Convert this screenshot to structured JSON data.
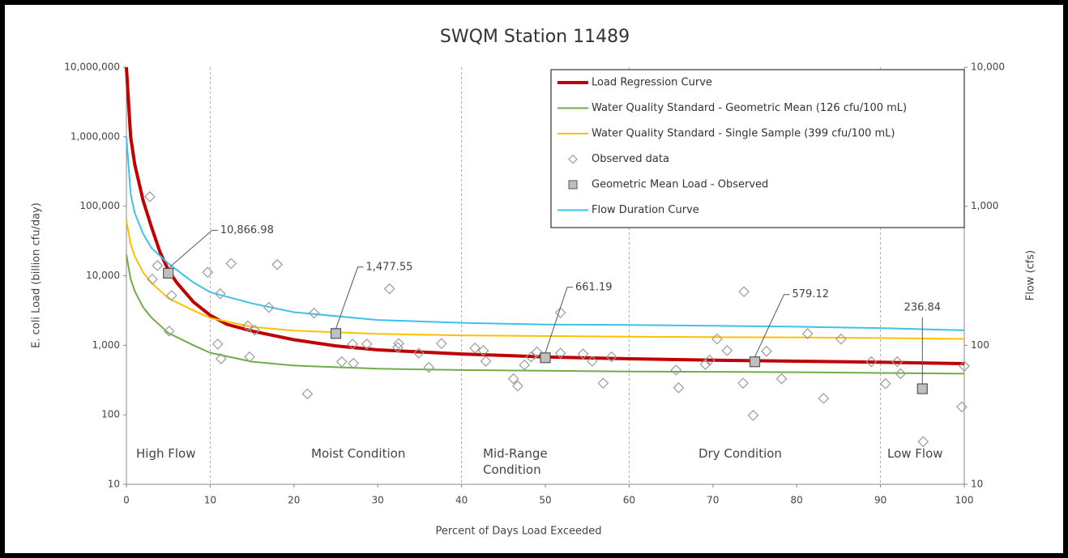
{
  "chart_data": {
    "type": "line",
    "title": "SWQM Station 11489",
    "x_label": "Percent of Days Load Exceeded",
    "y_label": "E. coli Load (billion cfu/day)",
    "y2_label": "Flow (cfs)",
    "xlim": [
      0,
      100
    ],
    "xticks": [
      0,
      10,
      20,
      30,
      40,
      50,
      60,
      70,
      80,
      90,
      100
    ],
    "ylim": [
      10,
      10000000
    ],
    "yticks": [
      10,
      100,
      {
        "value": 1000,
        "label": "1,000"
      },
      {
        "value": 10000,
        "label": "10,000"
      },
      {
        "value": 100000,
        "label": "100,000"
      },
      {
        "value": 1000000,
        "label": "1,000,000"
      },
      {
        "value": 10000000,
        "label": "10,000,000"
      }
    ],
    "y2lim": [
      10,
      10000
    ],
    "y2ticks": [
      10,
      100,
      {
        "value": 1000,
        "label": "1,000"
      },
      {
        "value": 10000,
        "label": "10,000"
      }
    ],
    "log_scale": true,
    "legend": "top-right",
    "zone_boundaries": [
      10,
      40,
      60,
      90
    ],
    "zone_labels": [
      "High Flow",
      "Moist Condition",
      "Mid-Range Condition",
      "Dry Condition",
      "Low Flow"
    ],
    "series": [
      {
        "name": "Load Regression Curve",
        "type": "line",
        "color": "#c00000",
        "x": [
          0,
          0.5,
          1,
          2,
          3,
          4,
          5,
          6,
          8,
          10,
          12,
          15,
          20,
          25,
          30,
          40,
          50,
          60,
          70,
          80,
          90,
          100
        ],
        "values": [
          10000000,
          1000000,
          400000,
          120000,
          50000,
          22000,
          12000,
          8000,
          4200,
          2700,
          2000,
          1600,
          1200,
          980,
          860,
          750,
          680,
          640,
          610,
          590,
          570,
          545
        ]
      },
      {
        "name": "Water Quality Standard - Geometric Mean (126 cfu/100 mL)",
        "type": "line",
        "color": "#70ad47",
        "x": [
          0,
          0.5,
          1,
          2,
          3,
          5,
          8,
          10,
          15,
          20,
          30,
          40,
          50,
          60,
          70,
          80,
          90,
          100
        ],
        "values": [
          20000,
          9000,
          6000,
          3500,
          2500,
          1500,
          1000,
          780,
          580,
          510,
          460,
          440,
          430,
          420,
          415,
          410,
          400,
          390
        ]
      },
      {
        "name": "Water Quality Standard - Single Sample (399 cfu/100 mL)",
        "type": "line",
        "color": "#ffc000",
        "x": [
          0,
          0.5,
          1,
          2,
          3,
          5,
          8,
          10,
          15,
          20,
          30,
          40,
          50,
          60,
          70,
          80,
          90,
          100
        ],
        "values": [
          63300,
          28500,
          19000,
          11100,
          7900,
          4750,
          3170,
          2470,
          1840,
          1620,
          1460,
          1390,
          1360,
          1330,
          1310,
          1300,
          1270,
          1235
        ]
      },
      {
        "name": "Observed data",
        "type": "scatter",
        "marker": "diamond",
        "color": "#9a9a9a",
        "x": [
          2.8,
          3.1,
          3.7,
          5.4,
          5.1,
          9.7,
          11.2,
          10.9,
          11.3,
          12.5,
          14.5,
          15.3,
          14.7,
          17.0,
          18.0,
          21.6,
          22.4,
          25.7,
          27.1,
          27.0,
          28.7,
          31.4,
          32.4,
          32.5,
          34.9,
          36.1,
          37.6,
          41.6,
          42.6,
          42.9,
          46.2,
          46.7,
          47.5,
          48.3,
          49.0,
          51.8,
          51.8,
          54.5,
          55.6,
          56.9,
          57.9,
          65.6,
          65.9,
          69.1,
          69.6,
          70.5,
          71.7,
          73.7,
          73.6,
          74.8,
          76.4,
          78.2,
          81.3,
          83.2,
          85.3,
          88.9,
          90.6,
          92.0,
          92.4,
          95.1,
          99.7,
          100
        ],
        "values": [
          137000,
          8900,
          14000,
          5200,
          1600,
          11200,
          5500,
          1040,
          640,
          15000,
          1900,
          1650,
          680,
          3500,
          14500,
          200,
          2900,
          580,
          550,
          1040,
          1040,
          6500,
          930,
          1060,
          770,
          480,
          1060,
          910,
          840,
          590,
          330,
          260,
          520,
          680,
          800,
          2950,
          770,
          750,
          590,
          285,
          680,
          440,
          245,
          530,
          610,
          1230,
          840,
          5900,
          285,
          98,
          820,
          330,
          1470,
          172,
          1230,
          580,
          280,
          580,
          390,
          41,
          130,
          500
        ]
      },
      {
        "name": "Geometric Mean Load - Observed",
        "type": "scatter",
        "marker": "square",
        "color": "#bfbfbf",
        "x": [
          5,
          25,
          50,
          75,
          95
        ],
        "values": [
          10866.98,
          1477.55,
          661.19,
          579.12,
          236.84
        ],
        "value_labels": [
          "10,866.98",
          "1,477.55",
          "661.19",
          "579.12",
          "236.84"
        ]
      },
      {
        "name": "Flow Duration Curve",
        "type": "line",
        "axis": "y2",
        "color": "#3fc1ea",
        "x": [
          0,
          0.5,
          1,
          2,
          3,
          5,
          8,
          10,
          15,
          20,
          30,
          40,
          50,
          60,
          70,
          80,
          90,
          100
        ],
        "values": [
          3162,
          1225,
          894,
          632,
          500,
          387,
          283,
          241,
          200,
          173,
          152,
          145,
          141,
          140,
          138,
          136,
          133,
          128
        ]
      }
    ]
  }
}
